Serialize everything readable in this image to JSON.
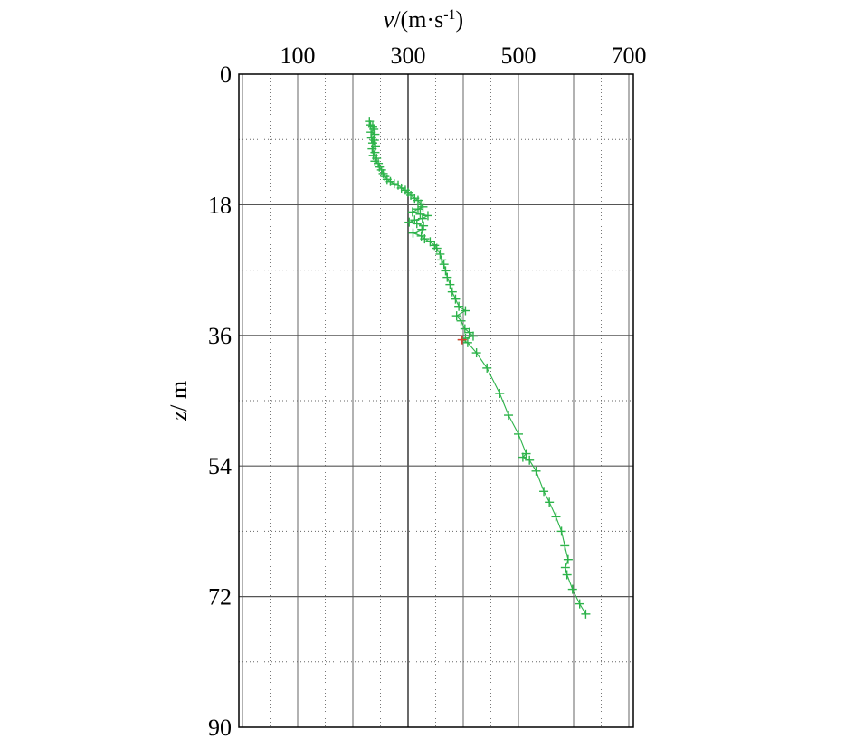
{
  "chart_data": {
    "type": "line",
    "xlabel": {
      "var": "v",
      "unit": "/(m·s",
      "exp": "-1",
      "close": ")"
    },
    "ylabel": {
      "var": "z",
      "unit": "/ m"
    },
    "xlim": [
      200,
      700
    ],
    "ylim": [
      0,
      90
    ],
    "y_inverted": true,
    "x_ticks": [
      100,
      300,
      500,
      700
    ],
    "y_ticks": [
      0,
      18,
      36,
      54,
      72,
      90
    ],
    "x_grid_solid": [
      200,
      250,
      300,
      350,
      400,
      450,
      500,
      550,
      600,
      650,
      700
    ],
    "x_grid_dotted": [],
    "y_grid_solid": [
      0,
      18,
      36,
      54,
      72,
      90
    ],
    "y_grid_dotted": [
      9,
      27,
      45,
      63,
      81
    ],
    "grid": true,
    "line_color": "#2db34a",
    "marker_color": "#2db34a",
    "highlight_color": "#e03c31",
    "series": [
      {
        "values": [
          [
            230,
            6.5
          ],
          [
            232,
            7.0
          ],
          [
            236,
            7.2
          ],
          [
            238,
            7.6
          ],
          [
            233,
            8.0
          ],
          [
            240,
            8.3
          ],
          [
            234,
            8.8
          ],
          [
            239,
            9.1
          ],
          [
            236,
            9.5
          ],
          [
            241,
            9.9
          ],
          [
            235,
            10.3
          ],
          [
            240,
            10.8
          ],
          [
            237,
            11.2
          ],
          [
            243,
            11.6
          ],
          [
            240,
            12.0
          ],
          [
            246,
            12.3
          ],
          [
            248,
            12.8
          ],
          [
            252,
            13.2
          ],
          [
            255,
            13.7
          ],
          [
            258,
            14.1
          ],
          [
            262,
            14.5
          ],
          [
            268,
            14.8
          ],
          [
            275,
            15.1
          ],
          [
            282,
            15.3
          ],
          [
            288,
            15.7
          ],
          [
            295,
            16.0
          ],
          [
            300,
            16.3
          ],
          [
            305,
            16.7
          ],
          [
            312,
            17.1
          ],
          [
            318,
            17.4
          ],
          [
            323,
            17.9
          ],
          [
            327,
            18.3
          ],
          [
            318,
            18.6
          ],
          [
            308,
            19.0
          ],
          [
            322,
            19.3
          ],
          [
            336,
            19.5
          ],
          [
            326,
            19.9
          ],
          [
            312,
            20.1
          ],
          [
            302,
            20.4
          ],
          [
            316,
            20.6
          ],
          [
            328,
            20.9
          ],
          [
            325,
            21.4
          ],
          [
            309,
            21.9
          ],
          [
            324,
            22.3
          ],
          [
            330,
            22.7
          ],
          [
            340,
            23.1
          ],
          [
            348,
            23.6
          ],
          [
            352,
            24.0
          ],
          [
            358,
            24.8
          ],
          [
            361,
            25.6
          ],
          [
            365,
            26.2
          ],
          [
            368,
            27.1
          ],
          [
            371,
            28.0
          ],
          [
            376,
            29.0
          ],
          [
            380,
            30.0
          ],
          [
            386,
            31.0
          ],
          [
            392,
            32.0
          ],
          [
            404,
            32.6
          ],
          [
            388,
            33.3
          ],
          [
            396,
            34.0
          ],
          [
            403,
            35.1
          ],
          [
            411,
            35.6
          ],
          [
            418,
            36.1
          ],
          [
            404,
            36.4
          ],
          [
            398,
            36.6
          ],
          [
            408,
            37.0
          ],
          [
            424,
            38.4
          ],
          [
            443,
            40.5
          ],
          [
            466,
            44.0
          ],
          [
            482,
            47.0
          ],
          [
            500,
            49.6
          ],
          [
            514,
            52.3
          ],
          [
            508,
            52.8
          ],
          [
            520,
            53.2
          ],
          [
            532,
            54.7
          ],
          [
            546,
            57.5
          ],
          [
            556,
            59.0
          ],
          [
            568,
            61.0
          ],
          [
            578,
            63.0
          ],
          [
            584,
            65.0
          ],
          [
            590,
            66.9
          ],
          [
            585,
            68.0
          ],
          [
            588,
            69.0
          ],
          [
            598,
            71.0
          ],
          [
            611,
            73.0
          ],
          [
            622,
            74.4
          ]
        ]
      }
    ],
    "highlight_points": [
      [
        398,
        36.6
      ]
    ]
  }
}
